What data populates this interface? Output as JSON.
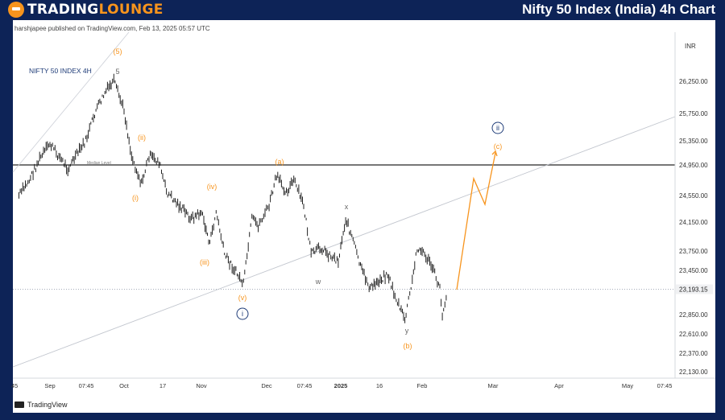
{
  "brand": {
    "word1": "TRADING",
    "word2": "LOUNGE"
  },
  "header": {
    "title": "Nifty 50 Index (India) 4h Chart"
  },
  "published": "harshjapee published on TradingView.com, Feb 13, 2025 05:57 UTC",
  "footer": {
    "tradingview": "TradingView"
  },
  "colors": {
    "header_bg": "#0d2357",
    "brand_accent": "#f7941d",
    "wave_orange": "#f7941d",
    "wave_navy": "#1f3c78",
    "price_bars": "#222222"
  },
  "chart_data": {
    "type": "bar",
    "symbol_label": "NIFTY 50 INDEX 4H",
    "currency": "INR",
    "y_ticks": [
      "26,250.00",
      "25,750.00",
      "25,350.00",
      "24,950.00",
      "24,550.00",
      "24,150.00",
      "23,750.00",
      "23,450.00",
      "22,850.00",
      "22,610.00",
      "22,370.00",
      "22,130.00"
    ],
    "last_price": "23,193.15",
    "x_ticks": [
      "45",
      "Sep",
      "07:45",
      "Oct",
      "17",
      "Nov",
      "Dec",
      "07:45",
      "2025",
      "16",
      "Feb",
      "Mar",
      "Apr",
      "May",
      "07:45"
    ],
    "median_line": {
      "label": "Median Level",
      "value": 24950
    },
    "price_path": [
      [
        "2024-08-12",
        24550
      ],
      [
        "2024-08-19",
        24750
      ],
      [
        "2024-08-26",
        25050
      ],
      [
        "2024-09-02",
        25300
      ],
      [
        "2024-09-09",
        24900
      ],
      [
        "2024-09-16",
        25350
      ],
      [
        "2024-09-20",
        25800
      ],
      [
        "2024-09-24",
        26100
      ],
      [
        "2024-09-27",
        26250
      ],
      [
        "2024-10-01",
        25800
      ],
      [
        "2024-10-04",
        25100
      ],
      [
        "2024-10-08",
        24700
      ],
      [
        "2024-10-11",
        25100
      ],
      [
        "2024-10-15",
        25000
      ],
      [
        "2024-10-18",
        24600
      ],
      [
        "2024-10-23",
        24400
      ],
      [
        "2024-10-28",
        24200
      ],
      [
        "2024-11-01",
        24300
      ],
      [
        "2024-11-05",
        23850
      ],
      [
        "2024-11-08",
        24300
      ],
      [
        "2024-11-12",
        23700
      ],
      [
        "2024-11-18",
        23400
      ],
      [
        "2024-11-21",
        23263
      ],
      [
        "2024-11-25",
        24200
      ],
      [
        "2024-11-28",
        24100
      ],
      [
        "2024-12-03",
        24400
      ],
      [
        "2024-12-06",
        24800
      ],
      [
        "2024-12-10",
        24600
      ],
      [
        "2024-12-13",
        24750
      ],
      [
        "2024-12-17",
        24400
      ],
      [
        "2024-12-20",
        23700
      ],
      [
        "2024-12-24",
        23800
      ],
      [
        "2024-12-27",
        23700
      ],
      [
        "2024-12-31",
        23600
      ],
      [
        "2025-01-03",
        24200
      ],
      [
        "2025-01-06",
        23900
      ],
      [
        "2025-01-09",
        23500
      ],
      [
        "2025-01-13",
        23200
      ],
      [
        "2025-01-16",
        23300
      ],
      [
        "2025-01-20",
        23400
      ],
      [
        "2025-01-23",
        23100
      ],
      [
        "2025-01-27",
        22786
      ],
      [
        "2025-01-30",
        23300
      ],
      [
        "2025-02-01",
        23800
      ],
      [
        "2025-02-04",
        23700
      ],
      [
        "2025-02-07",
        23500
      ],
      [
        "2025-02-10",
        23200
      ],
      [
        "2025-02-11",
        22850
      ],
      [
        "2025-02-13",
        23193
      ]
    ],
    "projection": [
      [
        "2025-02-13",
        23193
      ],
      [
        "2025-02-24",
        24750
      ],
      [
        "2025-03-01",
        24450
      ],
      [
        "2025-03-03",
        25400
      ]
    ],
    "wave_labels": [
      {
        "text": "(5)",
        "color": "orange"
      },
      {
        "text": "5",
        "color": "gray"
      },
      {
        "text": "(i)",
        "color": "orange"
      },
      {
        "text": "(ii)",
        "color": "orange"
      },
      {
        "text": "(iii)",
        "color": "orange"
      },
      {
        "text": "(iv)",
        "color": "orange"
      },
      {
        "text": "(v)",
        "color": "orange"
      },
      {
        "text": "i",
        "color": "navy",
        "circled": true
      },
      {
        "text": "(a)",
        "color": "orange"
      },
      {
        "text": "w",
        "color": "gray"
      },
      {
        "text": "x",
        "color": "gray"
      },
      {
        "text": "y",
        "color": "gray"
      },
      {
        "text": "(b)",
        "color": "orange"
      },
      {
        "text": "ii",
        "color": "navy",
        "circled": true
      },
      {
        "text": "(c)",
        "color": "orange"
      }
    ]
  }
}
